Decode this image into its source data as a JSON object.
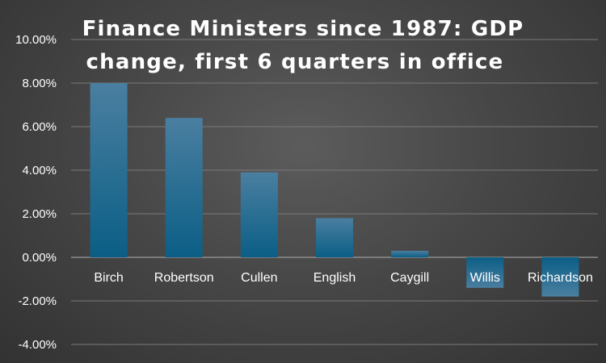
{
  "chart_data": {
    "type": "bar",
    "title": "Finance Ministers since 1987: GDP change, first 6 quarters in office",
    "title_lines": [
      "Finance Ministers since 1987: GDP",
      "change, first 6 quarters in office"
    ],
    "categories": [
      "Birch",
      "Robertson",
      "Cullen",
      "English",
      "Caygill",
      "Willis",
      "Richardson"
    ],
    "values": [
      8.0,
      6.4,
      3.9,
      1.8,
      0.3,
      -1.4,
      -1.8
    ],
    "ylim": [
      -4.0,
      10.0
    ],
    "yticks": [
      "10.00%",
      "8.00%",
      "6.00%",
      "4.00%",
      "2.00%",
      "0.00%",
      "-2.00%",
      "-4.00%"
    ],
    "ytick_values": [
      10,
      8,
      6,
      4,
      2,
      0,
      -2,
      -4
    ],
    "grid": true,
    "bar_color_top": "#4a7fa0",
    "bar_color_bottom": "#0b5e86"
  }
}
